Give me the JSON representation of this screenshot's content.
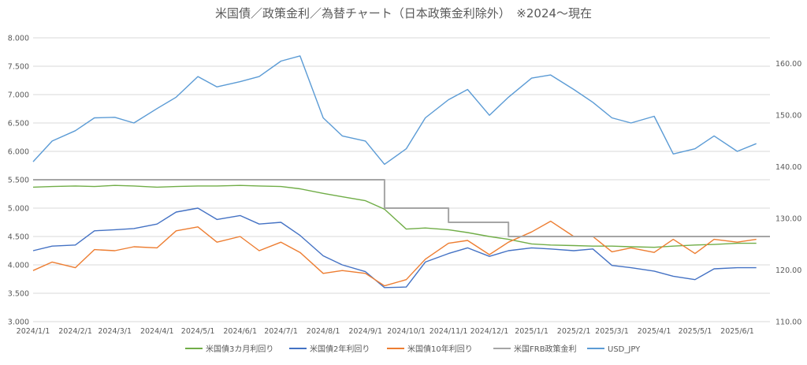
{
  "chart_data": {
    "type": "line",
    "title": "米国債／政策金利／為替チャート（日本政策金利除外）　※2024～現在",
    "x_ticks": [
      "2024/1/1",
      "2024/2/1",
      "2024/3/1",
      "2024/4/1",
      "2024/5/1",
      "2024/6/1",
      "2024/7/1",
      "2024/8/1",
      "2024/9/1",
      "2024/10/1",
      "2024/11/1",
      "2024/12/1",
      "2025/1/1",
      "2025/2/1",
      "2025/3/1",
      "2025/4/1",
      "2025/5/1",
      "2025/6/1"
    ],
    "y_left": {
      "ylim": [
        3.0,
        8.0
      ],
      "ticks": [
        "3.000",
        "3.500",
        "4.000",
        "4.500",
        "5.000",
        "5.500",
        "6.000",
        "6.500",
        "7.000",
        "7.500",
        "8.000"
      ]
    },
    "y_right": {
      "ylim": [
        110,
        165
      ],
      "ticks": [
        "110.00",
        "120.00",
        "130.00",
        "140.00",
        "150.00",
        "160.00"
      ]
    },
    "grid": "horizontal",
    "legend_position": "bottom",
    "x_dates": [
      "2024-01-01",
      "2024-01-15",
      "2024-02-01",
      "2024-02-15",
      "2024-03-01",
      "2024-03-15",
      "2024-04-01",
      "2024-04-15",
      "2024-05-01",
      "2024-05-15",
      "2024-06-01",
      "2024-06-15",
      "2024-07-01",
      "2024-07-15",
      "2024-08-01",
      "2024-08-15",
      "2024-09-01",
      "2024-09-15",
      "2024-10-01",
      "2024-10-15",
      "2024-11-01",
      "2024-11-15",
      "2024-12-01",
      "2024-12-15",
      "2025-01-01",
      "2025-01-15",
      "2025-02-01",
      "2025-02-15",
      "2025-03-01",
      "2025-03-15",
      "2025-04-01",
      "2025-04-15",
      "2025-05-01",
      "2025-05-15",
      "2025-06-01",
      "2025-06-15"
    ],
    "series": [
      {
        "name": "米国債3カ月利回り",
        "axis": "left",
        "color": "#70AD47",
        "values": [
          5.37,
          5.38,
          5.39,
          5.38,
          5.4,
          5.39,
          5.37,
          5.38,
          5.39,
          5.39,
          5.4,
          5.39,
          5.38,
          5.34,
          5.26,
          5.2,
          5.13,
          4.98,
          4.63,
          4.65,
          4.62,
          4.57,
          4.5,
          4.45,
          4.37,
          4.35,
          4.34,
          4.33,
          4.33,
          4.32,
          4.31,
          4.33,
          4.35,
          4.36,
          4.38,
          4.38
        ]
      },
      {
        "name": "米国債2年利回り",
        "axis": "left",
        "color": "#4472C4",
        "values": [
          4.25,
          4.33,
          4.35,
          4.6,
          4.62,
          4.64,
          4.72,
          4.93,
          5.0,
          4.8,
          4.87,
          4.72,
          4.75,
          4.52,
          4.16,
          4.0,
          3.88,
          3.6,
          3.61,
          4.05,
          4.2,
          4.3,
          4.15,
          4.25,
          4.3,
          4.28,
          4.25,
          4.28,
          3.99,
          3.95,
          3.89,
          3.8,
          3.74,
          3.93,
          3.95,
          3.95
        ]
      },
      {
        "name": "米国債10年利回り",
        "axis": "left",
        "color": "#ED7D31",
        "values": [
          3.9,
          4.05,
          3.95,
          4.27,
          4.25,
          4.32,
          4.3,
          4.6,
          4.67,
          4.4,
          4.5,
          4.25,
          4.4,
          4.22,
          3.85,
          3.9,
          3.85,
          3.63,
          3.74,
          4.1,
          4.38,
          4.43,
          4.18,
          4.4,
          4.58,
          4.77,
          4.5,
          4.5,
          4.23,
          4.3,
          4.22,
          4.45,
          4.2,
          4.45,
          4.4,
          4.45
        ]
      },
      {
        "name": "米国FRB政策金利",
        "axis": "left",
        "color": "#A5A5A5",
        "values": [
          5.5,
          5.5,
          5.5,
          5.5,
          5.5,
          5.5,
          5.5,
          5.5,
          5.5,
          5.5,
          5.5,
          5.5,
          5.5,
          5.5,
          5.5,
          5.5,
          5.5,
          5.0,
          5.0,
          5.0,
          4.75,
          4.75,
          4.75,
          4.5,
          4.5,
          4.5,
          4.5,
          4.5,
          4.5,
          4.5,
          4.5,
          4.5,
          4.5,
          4.5,
          4.5,
          4.5
        ]
      },
      {
        "name": "USD_JPY",
        "axis": "right",
        "color": "#5B9BD5",
        "values": [
          141.0,
          145.0,
          147.0,
          149.5,
          149.6,
          148.5,
          151.3,
          153.5,
          157.5,
          155.5,
          156.5,
          157.5,
          160.5,
          161.5,
          149.5,
          146.0,
          145.0,
          140.5,
          143.5,
          149.5,
          153.0,
          155.0,
          150.0,
          153.5,
          157.2,
          157.8,
          155.0,
          152.5,
          149.5,
          148.5,
          149.8,
          142.5,
          143.5,
          146.0,
          143.0,
          144.5
        ]
      }
    ]
  }
}
